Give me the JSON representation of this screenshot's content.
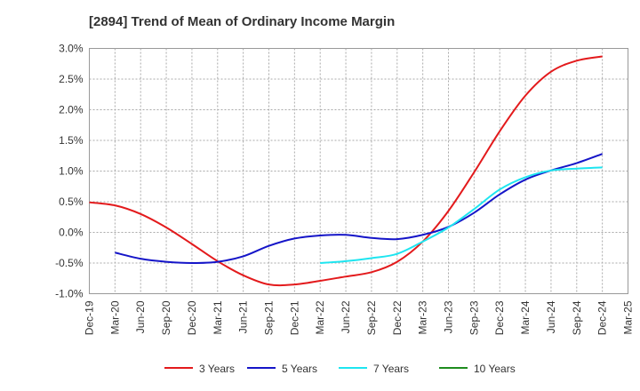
{
  "chart_data": {
    "type": "line",
    "title": "[2894]  Trend of Mean of Ordinary Income Margin",
    "xlabel": "",
    "ylabel": "",
    "x": [
      "Dec-19",
      "Mar-20",
      "Jun-20",
      "Sep-20",
      "Dec-20",
      "Mar-21",
      "Jun-21",
      "Sep-21",
      "Dec-21",
      "Mar-22",
      "Jun-22",
      "Sep-22",
      "Dec-22",
      "Mar-23",
      "Jun-23",
      "Sep-23",
      "Dec-23",
      "Mar-24",
      "Jun-24",
      "Sep-24",
      "Dec-24",
      "Mar-25"
    ],
    "y_ticks": [
      "3.0%",
      "2.5%",
      "2.0%",
      "1.5%",
      "1.0%",
      "0.5%",
      "0.0%",
      "-0.5%",
      "-1.0%"
    ],
    "ylim": [
      -1.0,
      3.0
    ],
    "grid": true,
    "legend_position": "bottom",
    "series": [
      {
        "name": "3 Years",
        "color": "#e31a1c",
        "values": [
          0.49,
          0.44,
          0.3,
          0.08,
          -0.19,
          -0.47,
          -0.7,
          -0.85,
          -0.85,
          -0.79,
          -0.72,
          -0.65,
          -0.48,
          -0.15,
          0.35,
          0.98,
          1.65,
          2.23,
          2.62,
          2.8,
          2.87,
          null
        ]
      },
      {
        "name": "5 Years",
        "color": "#1515c8",
        "values": [
          null,
          -0.33,
          -0.43,
          -0.48,
          -0.5,
          -0.48,
          -0.39,
          -0.22,
          -0.1,
          -0.05,
          -0.04,
          -0.09,
          -0.11,
          -0.04,
          0.09,
          0.32,
          0.62,
          0.86,
          1.01,
          1.13,
          1.28,
          null
        ]
      },
      {
        "name": "7 Years",
        "color": "#1ee5f0",
        "values": [
          null,
          null,
          null,
          null,
          null,
          null,
          null,
          null,
          null,
          -0.5,
          -0.47,
          -0.42,
          -0.35,
          -0.15,
          0.08,
          0.38,
          0.7,
          0.9,
          1.01,
          1.04,
          1.06,
          null
        ]
      },
      {
        "name": "10 Years",
        "color": "#1e8c1e",
        "values": [
          null,
          null,
          null,
          null,
          null,
          null,
          null,
          null,
          null,
          null,
          null,
          null,
          null,
          null,
          null,
          null,
          null,
          null,
          null,
          null,
          null,
          null
        ]
      }
    ]
  }
}
